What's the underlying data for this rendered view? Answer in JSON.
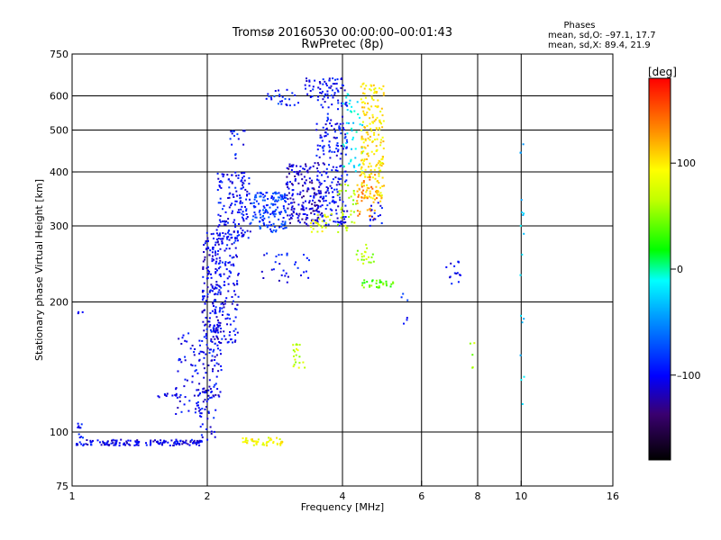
{
  "header": {
    "title": "Tromsø 20160530 00:00:00–00:01:43",
    "subtitle": "RwPretec (8p)"
  },
  "phases_box": {
    "title": "Phases",
    "line_o": "mean, sd,O: –97.1, 17.7",
    "line_x": "mean, sd,X:  89.4, 21.9"
  },
  "colorbar": {
    "label": "[deg]",
    "min": -180,
    "max": 180,
    "ticks": [
      {
        "value": 100,
        "label": "100"
      },
      {
        "value": 0,
        "label": "0"
      },
      {
        "value": -100,
        "label": "–100"
      }
    ]
  },
  "chart_data": {
    "type": "scatter",
    "title": "Tromsø 20160530 00:00:00–00:01:43",
    "subtitle": "RwPretec (8p)",
    "xlabel": "Frequency [MHz]",
    "ylabel": "Stationary phase Virtual Height [km]",
    "xscale": "log",
    "yscale": "log",
    "xlim": [
      1,
      16
    ],
    "ylim": [
      75,
      750
    ],
    "grid": true,
    "x_ticks": [
      {
        "value": 1,
        "label": "1"
      },
      {
        "value": 2,
        "label": "2"
      },
      {
        "value": 4,
        "label": "4"
      },
      {
        "value": 6,
        "label": "6"
      },
      {
        "value": 8,
        "label": "8"
      },
      {
        "value": 10,
        "label": "10"
      },
      {
        "value": 16,
        "label": "16"
      }
    ],
    "x_grid": [
      2,
      4,
      6,
      8,
      10
    ],
    "y_ticks": [
      {
        "value": 75,
        "label": "75"
      },
      {
        "value": 100,
        "label": "100"
      },
      {
        "value": 200,
        "label": "200"
      },
      {
        "value": 300,
        "label": "300"
      },
      {
        "value": 400,
        "label": "400"
      },
      {
        "value": 500,
        "label": "500"
      },
      {
        "value": 600,
        "label": "600"
      },
      {
        "value": 750,
        "label": "750"
      }
    ],
    "y_grid": [
      100,
      200,
      300,
      400,
      500,
      600
    ],
    "color_value": "phase [deg]",
    "clusters": [
      {
        "f0": 1.02,
        "f1": 1.95,
        "h0": 93,
        "h1": 96,
        "phase": -105,
        "count": 150
      },
      {
        "f0": 1.03,
        "f1": 1.06,
        "h0": 95,
        "h1": 105,
        "phase": -95,
        "count": 10
      },
      {
        "f0": 1.55,
        "f1": 1.75,
        "h0": 120,
        "h1": 123,
        "phase": -100,
        "count": 15
      },
      {
        "f0": 1.7,
        "f1": 1.95,
        "h0": 110,
        "h1": 170,
        "phase": -105,
        "count": 60
      },
      {
        "f0": 1.9,
        "f1": 2.1,
        "h0": 95,
        "h1": 130,
        "phase": -100,
        "count": 40
      },
      {
        "f0": 1.95,
        "f1": 2.15,
        "h0": 120,
        "h1": 290,
        "phase": -105,
        "count": 200
      },
      {
        "f0": 2.05,
        "f1": 2.35,
        "h0": 160,
        "h1": 290,
        "phase": -100,
        "count": 150
      },
      {
        "f0": 2.1,
        "f1": 2.5,
        "h0": 280,
        "h1": 400,
        "phase": -100,
        "count": 150
      },
      {
        "f0": 2.25,
        "f1": 2.45,
        "h0": 420,
        "h1": 500,
        "phase": -95,
        "count": 15
      },
      {
        "f0": 2.5,
        "f1": 3.0,
        "h0": 290,
        "h1": 360,
        "phase": -80,
        "count": 150
      },
      {
        "f0": 2.7,
        "f1": 3.2,
        "h0": 570,
        "h1": 620,
        "phase": -90,
        "count": 25
      },
      {
        "f0": 3.0,
        "f1": 3.6,
        "h0": 300,
        "h1": 420,
        "phase": -115,
        "count": 180
      },
      {
        "f0": 3.5,
        "f1": 4.1,
        "h0": 300,
        "h1": 660,
        "phase": -100,
        "count": 240
      },
      {
        "f0": 3.3,
        "f1": 3.9,
        "h0": 590,
        "h1": 660,
        "phase": -100,
        "count": 30
      },
      {
        "f0": 3.4,
        "f1": 3.8,
        "h0": 290,
        "h1": 320,
        "phase": 85,
        "count": 25
      },
      {
        "f0": 3.9,
        "f1": 4.3,
        "h0": 290,
        "h1": 380,
        "phase": 65,
        "count": 35
      },
      {
        "f0": 4.0,
        "f1": 4.45,
        "h0": 400,
        "h1": 610,
        "phase": -20,
        "count": 45
      },
      {
        "f0": 4.4,
        "f1": 4.95,
        "h0": 340,
        "h1": 650,
        "phase": 100,
        "count": 200
      },
      {
        "f0": 4.3,
        "f1": 4.8,
        "h0": 310,
        "h1": 400,
        "phase": 130,
        "count": 50
      },
      {
        "f0": 4.6,
        "f1": 4.9,
        "h0": 300,
        "h1": 340,
        "phase": -100,
        "count": 15
      },
      {
        "f0": 2.4,
        "f1": 2.95,
        "h0": 93,
        "h1": 97,
        "phase": 90,
        "count": 45
      },
      {
        "f0": 3.1,
        "f1": 3.3,
        "h0": 140,
        "h1": 160,
        "phase": 70,
        "count": 20
      },
      {
        "f0": 4.4,
        "f1": 5.2,
        "h0": 215,
        "h1": 225,
        "phase": 40,
        "count": 30
      },
      {
        "f0": 4.3,
        "f1": 4.7,
        "h0": 245,
        "h1": 275,
        "phase": 60,
        "count": 20
      },
      {
        "f0": 2.6,
        "f1": 3.4,
        "h0": 220,
        "h1": 260,
        "phase": -100,
        "count": 30
      },
      {
        "f0": 6.8,
        "f1": 7.5,
        "h0": 215,
        "h1": 250,
        "phase": -105,
        "count": 15
      },
      {
        "f0": 5.4,
        "f1": 5.6,
        "h0": 170,
        "h1": 210,
        "phase": -95,
        "count": 6
      },
      {
        "f0": 9.95,
        "f1": 10.15,
        "h0": 110,
        "h1": 470,
        "phase": -30,
        "count": 18
      },
      {
        "f0": 7.7,
        "f1": 7.9,
        "h0": 140,
        "h1": 190,
        "phase": 60,
        "count": 5
      },
      {
        "f0": 1.03,
        "f1": 1.06,
        "h0": 186,
        "h1": 190,
        "phase": -105,
        "count": 3
      }
    ]
  }
}
